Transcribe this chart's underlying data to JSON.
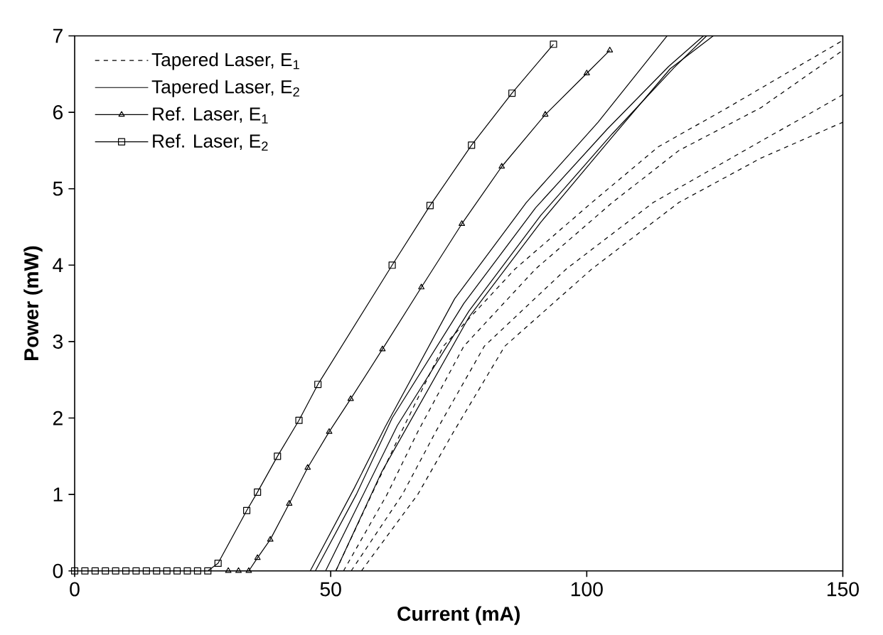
{
  "chart_data": {
    "type": "line",
    "xlabel": "Current (mA)",
    "ylabel": "Power (mW)",
    "xlim": [
      0,
      150
    ],
    "ylim": [
      0,
      7
    ],
    "xticks": [
      0,
      50,
      100,
      150
    ],
    "yticks": [
      0,
      1,
      2,
      3,
      4,
      5,
      6,
      7
    ],
    "grid": false,
    "legend": "top left",
    "series": [
      {
        "name": "Tapered Laser, E$_{1}$",
        "color": "#000000",
        "line_style": "dashed",
        "marker": "none",
        "x": [
          51,
          58,
          63.8,
          72,
          86,
          101,
          114,
          127.5,
          140,
          150
        ],
        "values": [
          0,
          1,
          1.82,
          2.94,
          3.95,
          4.82,
          5.55,
          6.06,
          6.55,
          6.94
        ]
      },
      {
        "color": "#000000",
        "line_style": "dashed",
        "marker": "none",
        "x": [
          52.5,
          61,
          67,
          76,
          90,
          105,
          118,
          134,
          150
        ],
        "values": [
          0,
          1,
          1.82,
          2.94,
          3.95,
          4.82,
          5.5,
          6.06,
          6.81
        ]
      },
      {
        "color": "#000000",
        "line_style": "dashed",
        "marker": "none",
        "x": [
          54,
          64,
          70.5,
          80,
          96,
          113,
          130,
          144,
          150
        ],
        "values": [
          0,
          1,
          1.82,
          2.94,
          3.95,
          4.82,
          5.47,
          6.0,
          6.23
        ]
      },
      {
        "color": "#000000",
        "line_style": "dashed",
        "marker": "none",
        "x": [
          56,
          67,
          74,
          84,
          101,
          118,
          134,
          150
        ],
        "values": [
          0,
          1,
          1.82,
          2.94,
          3.95,
          4.82,
          5.4,
          5.87
        ]
      },
      {
        "name": "Tapered Laser, E$_{2}$",
        "color": "#000000",
        "line_style": "solid",
        "marker": "none",
        "x": [
          46,
          54.5,
          60.6,
          74.2,
          88.2,
          102.2,
          115.7
        ],
        "values": [
          0,
          1.07,
          1.88,
          3.56,
          4.82,
          5.87,
          7
        ]
      },
      {
        "color": "#000000",
        "line_style": "solid",
        "marker": "none",
        "x": [
          47,
          55,
          62,
          76,
          90,
          104,
          116,
          122.8
        ],
        "values": [
          0,
          1.0,
          2.0,
          3.5,
          4.75,
          5.78,
          6.6,
          7
        ]
      },
      {
        "color": "#000000",
        "line_style": "solid",
        "marker": "none",
        "x": [
          49,
          56,
          63,
          77,
          91,
          105,
          117,
          123.4
        ],
        "values": [
          0,
          0.95,
          1.9,
          3.4,
          4.65,
          5.72,
          6.58,
          7
        ]
      },
      {
        "color": "#000000",
        "line_style": "solid",
        "marker": "none",
        "x": [
          51,
          60,
          77,
          91,
          105,
          116.3,
          124.7
        ],
        "values": [
          0,
          1.3,
          3.32,
          4.56,
          5.68,
          6.57,
          7
        ]
      },
      {
        "name": "Ref. Laser, E$_{1}$",
        "color": "#000000",
        "line_style": "solid",
        "marker": "triangle",
        "x": [
          30,
          32,
          34,
          35.7,
          38.2,
          41.9,
          45.5,
          49.7,
          53.9,
          60.1,
          67.7,
          75.6,
          83.4,
          91.9,
          100,
          104.5
        ],
        "values": [
          0,
          0,
          0,
          0.17,
          0.41,
          0.88,
          1.35,
          1.82,
          2.25,
          2.9,
          3.71,
          4.54,
          5.29,
          5.97,
          6.51,
          6.81
        ]
      },
      {
        "name": "Ref. Laser, E$_{2}$",
        "color": "#000000",
        "line_style": "solid",
        "marker": "square",
        "x": [
          0,
          2,
          4,
          6,
          8,
          10,
          12,
          14,
          16,
          18,
          20,
          22,
          24,
          26,
          28,
          33.6,
          35.7,
          39.6,
          43.8,
          47.5,
          62,
          69.4,
          77.5,
          85.4,
          93.5
        ],
        "values": [
          0,
          0,
          0,
          0,
          0,
          0,
          0,
          0,
          0,
          0,
          0,
          0,
          0,
          0,
          0.1,
          0.79,
          1.03,
          1.5,
          1.97,
          2.44,
          4.0,
          4.78,
          5.57,
          6.25,
          6.89
        ]
      }
    ]
  }
}
